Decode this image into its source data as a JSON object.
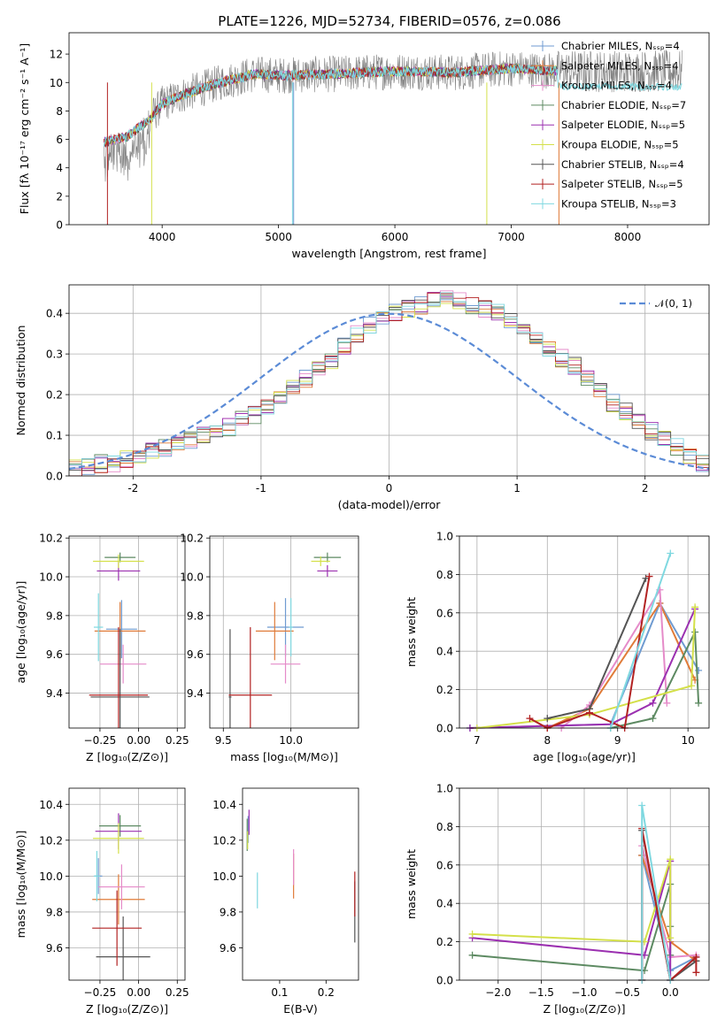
{
  "title": "PLATE=1226, MJD=52734, FIBERID=0576, z=0.086",
  "colors": [
    "#6f9bd1",
    "#e07b39",
    "#e58bc9",
    "#5d8a62",
    "#9b30b0",
    "#d4e04a",
    "#555555",
    "#b22222",
    "#7fd8e0"
  ],
  "chart_data": [
    {
      "type": "line",
      "xlabel": "wavelength [Angstrom, rest frame]",
      "ylabel": "Flux [fλ 10⁻¹⁷ erg cm⁻² s⁻¹ A⁻¹]",
      "xlim": [
        3200,
        8700
      ],
      "ylim": [
        0,
        13.5
      ],
      "xticks": [
        4000,
        5000,
        6000,
        7000,
        8000
      ],
      "yticks": [
        0,
        2,
        4,
        6,
        8,
        10,
        12
      ],
      "grid": false,
      "legend": "top-right",
      "series": [
        {
          "name": "Chabrier MILES, N_SSP=4"
        },
        {
          "name": "Salpeter MILES, N_SSP=4"
        },
        {
          "name": "Kroupa MILES, N_SSP=4"
        },
        {
          "name": "Chabrier ELODIE, N_SSP=7"
        },
        {
          "name": "Salpeter ELODIE, N_SSP=5"
        },
        {
          "name": "Kroupa ELODIE, N_SSP=5"
        },
        {
          "name": "Chabrier STELIB, N_SSP=4"
        },
        {
          "name": "Salpeter STELIB, N_SSP=5"
        },
        {
          "name": "Kroupa STELIB, N_SSP=3"
        }
      ],
      "continuum": {
        "x": [
          3500,
          3700,
          3900,
          4000,
          4200,
          4500,
          4800,
          5000,
          5500,
          6000,
          6500,
          7000,
          7400
        ],
        "y": [
          5.8,
          6.2,
          7.5,
          8.5,
          9.2,
          10.0,
          10.6,
          10.5,
          10.6,
          10.8,
          10.7,
          11.0,
          10.8
        ]
      }
    },
    {
      "type": "bar",
      "xlabel": "(data-model)/error",
      "ylabel": "Normed distribution",
      "xlim": [
        -2.5,
        2.5
      ],
      "ylim": [
        0,
        0.47
      ],
      "xticks": [
        -2,
        -1,
        0,
        1,
        2
      ],
      "yticks": [
        0.0,
        0.1,
        0.2,
        0.3,
        0.4
      ],
      "grid": true,
      "legend": "top-right",
      "legend_label": "𝒩(0, 1)",
      "bin_start": -2.5,
      "bin_width": 0.1,
      "histogram": [
        0.02,
        0.025,
        0.03,
        0.032,
        0.04,
        0.05,
        0.06,
        0.07,
        0.08,
        0.09,
        0.1,
        0.11,
        0.12,
        0.14,
        0.15,
        0.17,
        0.19,
        0.22,
        0.24,
        0.26,
        0.28,
        0.32,
        0.35,
        0.37,
        0.39,
        0.4,
        0.41,
        0.42,
        0.43,
        0.44,
        0.43,
        0.42,
        0.41,
        0.4,
        0.38,
        0.36,
        0.34,
        0.31,
        0.29,
        0.27,
        0.24,
        0.21,
        0.18,
        0.16,
        0.13,
        0.11,
        0.09,
        0.07,
        0.05,
        0.03
      ]
    },
    {
      "type": "scatter",
      "xlabel": "Z [log₁₀(Z/Z⊙)]",
      "ylabel": "age  [log₁₀(age/yr)]",
      "xlim": [
        -0.45,
        0.3
      ],
      "ylim": [
        9.22,
        10.21
      ],
      "xticks": [
        -0.25,
        0.0,
        0.25
      ],
      "xticklabels": [
        "−0.25",
        "0.00",
        "0.25"
      ],
      "yticks": [
        9.4,
        9.6,
        9.8,
        10.0,
        10.2
      ],
      "yticklabels": [
        "9.4",
        "9.6",
        "9.8",
        "10.0",
        "10.2"
      ],
      "grid": true,
      "errorbars": [
        {
          "c": 0,
          "x": -0.11,
          "y": 9.73,
          "ex": 0.2,
          "ey": 0.3
        },
        {
          "c": 1,
          "x": -0.12,
          "y": 9.72,
          "ex": 0.33,
          "ey": 0.3
        },
        {
          "c": 2,
          "x": -0.1,
          "y": 9.55,
          "ex": 0.3,
          "ey": 0.2
        },
        {
          "c": 3,
          "x": -0.12,
          "y": 10.1,
          "ex": 0.2,
          "ey": 0.05
        },
        {
          "c": 4,
          "x": -0.13,
          "y": 10.03,
          "ex": 0.28,
          "ey": 0.1
        },
        {
          "c": 5,
          "x": -0.13,
          "y": 10.08,
          "ex": 0.33,
          "ey": 0.07
        },
        {
          "c": 6,
          "x": -0.12,
          "y": 9.38,
          "ex": 0.38,
          "ey": 0.7
        },
        {
          "c": 7,
          "x": -0.13,
          "y": 9.39,
          "ex": 0.38,
          "ey": 0.7
        },
        {
          "c": 8,
          "x": -0.26,
          "y": 9.74,
          "ex": 0.06,
          "ey": 0.35
        }
      ]
    },
    {
      "type": "scatter",
      "xlabel": "mass [log₁₀(M/M⊙)]",
      "xlim": [
        9.4,
        10.5
      ],
      "ylim": [
        9.22,
        10.21
      ],
      "xticks": [
        9.5,
        10.0
      ],
      "xticklabels": [
        "9.5",
        "10.0"
      ],
      "yticks": [
        9.4,
        9.6,
        9.8,
        10.0,
        10.2
      ],
      "yticklabels": [
        "9.4",
        "9.6",
        "9.8",
        "10.0",
        "10.2"
      ],
      "grid": true,
      "errorbars": [
        {
          "c": 0,
          "x": 9.96,
          "y": 9.74,
          "ex": 0.27,
          "ey": 0.3
        },
        {
          "c": 1,
          "x": 9.88,
          "y": 9.72,
          "ex": 0.28,
          "ey": 0.3
        },
        {
          "c": 2,
          "x": 9.96,
          "y": 9.55,
          "ex": 0.22,
          "ey": 0.2
        },
        {
          "c": 3,
          "x": 10.27,
          "y": 10.1,
          "ex": 0.2,
          "ey": 0.05
        },
        {
          "c": 4,
          "x": 10.27,
          "y": 10.03,
          "ex": 0.15,
          "ey": 0.06
        },
        {
          "c": 5,
          "x": 10.22,
          "y": 10.08,
          "ex": 0.14,
          "ey": 0.05
        },
        {
          "c": 6,
          "x": 9.55,
          "y": 9.38,
          "ex": 0.02,
          "ey": 0.7
        },
        {
          "c": 7,
          "x": 9.7,
          "y": 9.39,
          "ex": 0.32,
          "ey": 0.7
        },
        {
          "c": 8,
          "x": 10.0,
          "y": 9.74,
          "ex": 0.03,
          "ey": 0.3
        }
      ]
    },
    {
      "type": "line",
      "xlabel": "age  [log₁₀(age/yr)]",
      "ylabel": "mass weight",
      "xlim": [
        6.75,
        10.3
      ],
      "ylim": [
        0,
        1.0
      ],
      "xticks": [
        7,
        8,
        9,
        10
      ],
      "xticklabels": [
        "7",
        "8",
        "9",
        "10"
      ],
      "yticks": [
        0.0,
        0.2,
        0.4,
        0.6,
        0.8,
        1.0
      ],
      "yticklabels": [
        "0.0",
        "0.2",
        "0.4",
        "0.6",
        "0.8",
        "1.0"
      ],
      "grid": true,
      "series": [
        {
          "c": 0,
          "x": [
            6.9,
            8.9,
            9.6,
            10.15
          ],
          "y": [
            0.0,
            0.02,
            0.65,
            0.3
          ]
        },
        {
          "c": 1,
          "x": [
            8.0,
            8.6,
            9.6,
            10.1
          ],
          "y": [
            0.0,
            0.1,
            0.65,
            0.25
          ]
        },
        {
          "c": 2,
          "x": [
            8.2,
            8.6,
            9.6,
            9.7
          ],
          "y": [
            0.0,
            0.12,
            0.72,
            0.13
          ]
        },
        {
          "c": 3,
          "x": [
            8.9,
            9.5,
            10.1,
            10.15
          ],
          "y": [
            0.0,
            0.05,
            0.5,
            0.13
          ]
        },
        {
          "c": 4,
          "x": [
            6.9,
            8.9,
            9.5,
            10.1
          ],
          "y": [
            0.0,
            0.02,
            0.13,
            0.62
          ]
        },
        {
          "c": 5,
          "x": [
            7.0,
            8.6,
            10.05,
            10.1
          ],
          "y": [
            0.0,
            0.07,
            0.22,
            0.63
          ]
        },
        {
          "c": 6,
          "x": [
            8.0,
            8.6,
            9.4
          ],
          "y": [
            0.05,
            0.1,
            0.78
          ]
        },
        {
          "c": 7,
          "x": [
            7.75,
            8.0,
            8.6,
            9.1,
            9.45
          ],
          "y": [
            0.05,
            0.0,
            0.08,
            0.0,
            0.79
          ]
        },
        {
          "c": 8,
          "x": [
            8.9,
            9.75
          ],
          "y": [
            0.0,
            0.91
          ]
        }
      ]
    },
    {
      "type": "scatter",
      "xlabel": "Z [log₁₀(Z/Z⊙)]",
      "ylabel": "mass [log₁₀(M/M⊙)]",
      "xlim": [
        -0.45,
        0.3
      ],
      "ylim": [
        9.42,
        10.49
      ],
      "xticks": [
        -0.25,
        0.0,
        0.25
      ],
      "xticklabels": [
        "−0.25",
        "0.00",
        "0.25"
      ],
      "yticks": [
        9.6,
        9.8,
        10.0,
        10.2,
        10.4
      ],
      "yticklabels": [
        "9.6",
        "9.8",
        "10.0",
        "10.2",
        "10.4"
      ],
      "grid": true,
      "errorbars": [
        {
          "c": 0,
          "x": -0.26,
          "y": 10.0,
          "ex": 0.05,
          "ey": 0.2
        },
        {
          "c": 1,
          "x": -0.13,
          "y": 9.87,
          "ex": 0.34,
          "ey": 0.28
        },
        {
          "c": 2,
          "x": -0.11,
          "y": 9.94,
          "ex": 0.3,
          "ey": 0.25
        },
        {
          "c": 3,
          "x": -0.12,
          "y": 10.28,
          "ex": 0.27,
          "ey": 0.12
        },
        {
          "c": 4,
          "x": -0.13,
          "y": 10.25,
          "ex": 0.3,
          "ey": 0.2
        },
        {
          "c": 5,
          "x": -0.13,
          "y": 10.21,
          "ex": 0.33,
          "ey": 0.17
        },
        {
          "c": 6,
          "x": -0.1,
          "y": 9.55,
          "ex": 0.35,
          "ey": 0.45
        },
        {
          "c": 7,
          "x": -0.14,
          "y": 9.71,
          "ex": 0.32,
          "ey": 0.42
        },
        {
          "c": 8,
          "x": -0.27,
          "y": 10.0,
          "ex": 0.04,
          "ey": 0.28
        }
      ]
    },
    {
      "type": "scatter",
      "xlabel": "E(B-V)",
      "xlim": [
        0.02,
        0.27
      ],
      "ylim": [
        9.42,
        10.49
      ],
      "xticks": [
        0.1,
        0.2
      ],
      "xticklabels": [
        "0.1",
        "0.2"
      ],
      "yticks": [
        9.6,
        9.8,
        10.0,
        10.2,
        10.4
      ],
      "yticklabels": [
        "9.6",
        "9.8",
        "10.0",
        "10.2",
        "10.4"
      ],
      "grid": false,
      "errorbars": [
        {
          "c": 0,
          "x": 0.032,
          "y": 10.26,
          "ex": 0,
          "ey": 0.15
        },
        {
          "c": 1,
          "x": 0.13,
          "y": 10.0,
          "ex": 0,
          "ey": 0.25
        },
        {
          "c": 2,
          "x": 0.13,
          "y": 10.05,
          "ex": 0,
          "ey": 0.2
        },
        {
          "c": 3,
          "x": 0.03,
          "y": 10.23,
          "ex": 0,
          "ey": 0.18
        },
        {
          "c": 4,
          "x": 0.034,
          "y": 10.3,
          "ex": 0,
          "ey": 0.14
        },
        {
          "c": 5,
          "x": 0.031,
          "y": 10.2,
          "ex": 0,
          "ey": 0.1
        },
        {
          "c": 6,
          "x": 0.262,
          "y": 9.8,
          "ex": 0,
          "ey": 0.34
        },
        {
          "c": 7,
          "x": 0.262,
          "y": 9.9,
          "ex": 0,
          "ey": 0.25
        },
        {
          "c": 8,
          "x": 0.052,
          "y": 9.92,
          "ex": 0,
          "ey": 0.2
        }
      ]
    },
    {
      "type": "line",
      "xlabel": "Z [log₁₀(Z/Z⊙)]",
      "ylabel": "mass weight",
      "xlim": [
        -2.45,
        0.45
      ],
      "ylim": [
        0,
        1.0
      ],
      "xticks": [
        -2.0,
        -1.5,
        -1.0,
        -0.5,
        0.0
      ],
      "xticklabels": [
        "−2.0",
        "−1.5",
        "−1.0",
        "−0.5",
        "0.0"
      ],
      "yticks": [
        0.0,
        0.2,
        0.4,
        0.6,
        0.8,
        1.0
      ],
      "yticklabels": [
        "0.0",
        "0.2",
        "0.4",
        "0.6",
        "0.8",
        "1.0"
      ],
      "grid": true,
      "series": [
        {
          "c": 0,
          "x": [
            -0.33,
            -0.33,
            0.0,
            0.3
          ],
          "y": [
            0.0,
            0.65,
            0.05,
            0.12
          ]
        },
        {
          "c": 1,
          "x": [
            -0.33,
            -0.33,
            0.0,
            0.3
          ],
          "y": [
            0.0,
            0.65,
            0.2,
            0.1
          ]
        },
        {
          "c": 2,
          "x": [
            -0.33,
            -0.33,
            0.0,
            0.3
          ],
          "y": [
            0.0,
            0.7,
            0.12,
            0.13
          ]
        },
        {
          "c": 3,
          "x": [
            -2.3,
            -0.3,
            0.0,
            0.0,
            0.0
          ],
          "y": [
            0.13,
            0.05,
            0.5,
            0.28,
            0.13
          ]
        },
        {
          "c": 4,
          "x": [
            -2.3,
            -0.3,
            0.0,
            0.0
          ],
          "y": [
            0.22,
            0.13,
            0.62,
            0.0
          ]
        },
        {
          "c": 5,
          "x": [
            -2.3,
            -0.3,
            0.0,
            0.0
          ],
          "y": [
            0.24,
            0.2,
            0.63,
            0.22
          ]
        },
        {
          "c": 6,
          "x": [
            -0.33,
            -0.33,
            0.0,
            0.3
          ],
          "y": [
            0.0,
            0.78,
            0.0,
            0.1
          ]
        },
        {
          "c": 7,
          "x": [
            -0.33,
            -0.33,
            0.0,
            0.3,
            0.3
          ],
          "y": [
            0.0,
            0.79,
            0.0,
            0.12,
            0.04
          ]
        },
        {
          "c": 8,
          "x": [
            -0.33,
            -0.33,
            0.0
          ],
          "y": [
            0.0,
            0.91,
            0.0
          ]
        }
      ]
    }
  ]
}
